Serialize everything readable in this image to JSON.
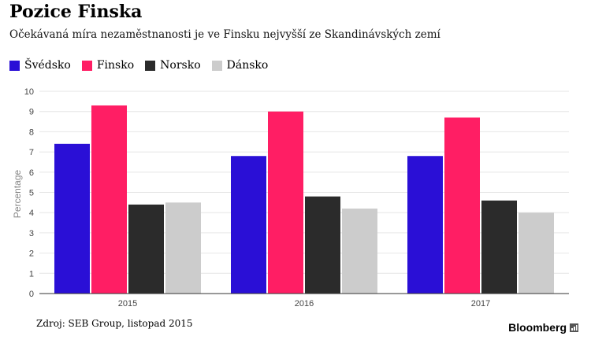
{
  "title": "Pozice Finska",
  "subtitle": "Očekávaná míra nezaměstnanosti je ve Finsku nejvyšší ze Skandinávských zemí",
  "legend": [
    {
      "label": "Švédsko",
      "color": "#2a0fd6"
    },
    {
      "label": "Finsko",
      "color": "#ff1e64"
    },
    {
      "label": "Norsko",
      "color": "#2b2b2b"
    },
    {
      "label": "Dánsko",
      "color": "#cccccc"
    }
  ],
  "source": "Zdroj: SEB Group, listopad 2015",
  "brand": "Bloomberg",
  "chart_data": {
    "type": "bar",
    "categories": [
      "2015",
      "2016",
      "2017"
    ],
    "series": [
      {
        "name": "Švédsko",
        "color": "#2a0fd6",
        "values": [
          7.4,
          6.8,
          6.8
        ]
      },
      {
        "name": "Finsko",
        "color": "#ff1e64",
        "values": [
          9.3,
          9.0,
          8.7
        ]
      },
      {
        "name": "Norsko",
        "color": "#2b2b2b",
        "values": [
          4.4,
          4.8,
          4.6
        ]
      },
      {
        "name": "Dánsko",
        "color": "#cccccc",
        "values": [
          4.5,
          4.2,
          4.0
        ]
      }
    ],
    "ylabel": "Percentage",
    "ylim": [
      0,
      10
    ],
    "yticks": [
      0,
      1,
      2,
      3,
      4,
      5,
      6,
      7,
      8,
      9,
      10
    ],
    "grid": true
  }
}
